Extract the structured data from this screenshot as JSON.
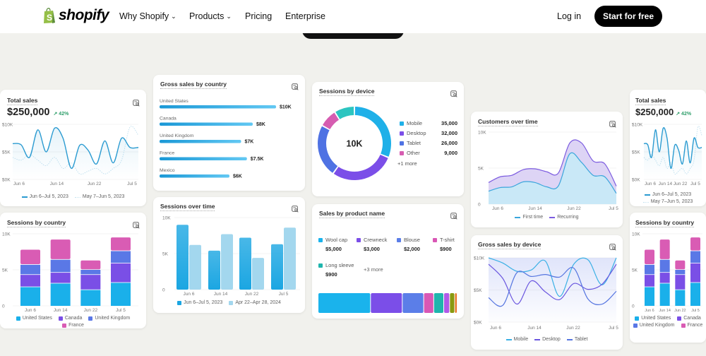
{
  "nav": {
    "logo_text": "shopify",
    "brand_color": "#95bf47",
    "items": [
      {
        "label": "Why Shopify",
        "dropdown": true
      },
      {
        "label": "Products",
        "dropdown": true
      },
      {
        "label": "Pricing",
        "dropdown": false
      },
      {
        "label": "Enterprise",
        "dropdown": false
      }
    ],
    "login": "Log in",
    "cta": "Start for free"
  },
  "card_icon": "chart-magnifier-icon",
  "chart_data": [
    {
      "type": "line",
      "title": "Total sales",
      "value": "$250,000",
      "change": "42%",
      "change_icon": "arrow-up-right-icon",
      "x_ticks": [
        "Jun 6",
        "Jun 14",
        "Jun 22",
        "Jul 5"
      ],
      "yticks": [
        0,
        5,
        10
      ],
      "ytick_labels": [
        "$0K",
        "$5K",
        "$10K"
      ],
      "ylim": [
        0,
        10
      ],
      "series": [
        {
          "name": "Jun 6–Jul 5, 2023",
          "color": "#2b9bd1",
          "values": [
            6.5,
            6.3,
            4.0,
            9.0,
            5.0,
            9.3,
            7.5,
            2.0,
            6.2,
            5.3,
            2.8,
            7.0,
            3.0,
            7.5,
            5.8,
            5.8
          ]
        },
        {
          "name": "May 7–Jun 5, 2023",
          "color": "#c4e2f0",
          "dashed": true,
          "values": [
            4.0,
            3.5,
            4.5,
            3.5,
            2.5,
            4.0,
            2.0,
            3.0,
            1.0,
            1.5,
            2.0,
            1.0,
            2.0,
            3.5,
            9.5,
            8.0
          ]
        }
      ]
    },
    {
      "type": "bar",
      "stacked": true,
      "title": "Sessions by country",
      "categories": [
        "Jun 6",
        "Jun 14",
        "Jun 22",
        "Jul 5"
      ],
      "yticks": [
        0,
        5,
        10
      ],
      "ytick_labels": [
        "0",
        "5K",
        "10K"
      ],
      "ylim": [
        0,
        10
      ],
      "series": [
        {
          "name": "United States",
          "color": "#1ab0ea",
          "values": [
            2.6,
            3.1,
            2.2,
            3.2
          ]
        },
        {
          "name": "Canada",
          "color": "#7a4fe6",
          "values": [
            1.7,
            1.5,
            2.1,
            2.7
          ]
        },
        {
          "name": "United Kingdom",
          "color": "#5a78e6",
          "values": [
            1.4,
            1.8,
            0.7,
            1.7
          ]
        },
        {
          "name": "France",
          "color": "#d95cb4",
          "values": [
            2.1,
            2.8,
            1.3,
            1.9
          ]
        }
      ]
    },
    {
      "type": "bar",
      "orientation": "horizontal",
      "title": "Gross sales by country",
      "xlim": [
        0,
        10
      ],
      "categories": [
        "United States",
        "Canada",
        "United Kingdom",
        "France",
        "Mexico"
      ],
      "values": [
        10,
        8,
        7,
        7.5,
        6
      ],
      "value_labels": [
        "$10K",
        "$8K",
        "$7K",
        "$7.5K",
        "$6K"
      ],
      "colors": [
        "#1a98d6",
        "#62c8f3"
      ]
    },
    {
      "type": "bar",
      "title": "Sessions over time",
      "categories": [
        "Jun 6",
        "Jun 14",
        "Jun 22",
        "Jul 5"
      ],
      "yticks": [
        0,
        5,
        10
      ],
      "ytick_labels": [
        "0",
        "5K",
        "10K"
      ],
      "ylim": [
        0,
        10
      ],
      "series": [
        {
          "name": "Jun 6–Jul 5, 2023",
          "color": "#1ba6e2",
          "values": [
            9.0,
            5.4,
            7.2,
            6.3
          ]
        },
        {
          "name": "Apr 22–Apr 28, 2024",
          "color": "#a3d7ee",
          "values": [
            6.2,
            7.7,
            4.4,
            8.6
          ]
        }
      ]
    },
    {
      "type": "pie",
      "donut": true,
      "title": "Sessions by device",
      "center_label": "10K",
      "slices": [
        {
          "name": "Mobile",
          "value": 35000,
          "value_label": "35,000",
          "color": "#1fb0e8"
        },
        {
          "name": "Desktop",
          "value": 32000,
          "value_label": "32,000",
          "color": "#7b4ee8"
        },
        {
          "name": "Tablet",
          "value": 26000,
          "value_label": "26,000",
          "color": "#4f72e3"
        },
        {
          "name": "Other",
          "value": 9000,
          "value_label": "9,000",
          "color": "#d65db1"
        },
        {
          "name": "",
          "value": 10000,
          "color": "#2cc5c0"
        }
      ],
      "more_label": "+1 more"
    },
    {
      "type": "bar",
      "stacked": true,
      "orientation": "horizontal",
      "title": "Sales by product name",
      "items": [
        {
          "name": "Wool cap",
          "value_label": "$5,000",
          "value": 5000,
          "color": "#1ab3ec"
        },
        {
          "name": "Crewneck",
          "value_label": "$3,000",
          "value": 3000,
          "color": "#7b4ee8"
        },
        {
          "name": "Blouse",
          "value_label": "$2,000",
          "value": 2000,
          "color": "#5b7ee8"
        },
        {
          "name": "T-shirt",
          "value_label": "$900",
          "value": 900,
          "color": "#d957b5"
        },
        {
          "name": "Long sleeve",
          "value_label": "$900",
          "value": 900,
          "color": "#1fb5ad"
        }
      ],
      "more_label": "+3 more",
      "bar_segments": [
        {
          "value": 5000,
          "color": "#1ab3ec"
        },
        {
          "value": 3000,
          "color": "#7b4ee8"
        },
        {
          "value": 2000,
          "color": "#5b7ee8"
        },
        {
          "value": 900,
          "color": "#d957b5"
        },
        {
          "value": 900,
          "color": "#1fb5ad"
        },
        {
          "value": 500,
          "color": "#b05ae8"
        },
        {
          "value": 420,
          "color": "#8a9a10"
        },
        {
          "value": 170,
          "color": "#e8782a"
        }
      ]
    },
    {
      "type": "area",
      "stacked": true,
      "title": "Customers over time",
      "x_ticks": [
        "Jun 6",
        "Jun 14",
        "Jun 22",
        "Jul 5"
      ],
      "yticks": [
        0,
        5,
        10
      ],
      "ytick_labels": [
        "0",
        "5K",
        "10K"
      ],
      "ylim": [
        0,
        10
      ],
      "series": [
        {
          "name": "First time",
          "color": "#3aa6dc",
          "fill": "#c9e8f7",
          "values": [
            1.8,
            2.3,
            2.4,
            3.1,
            3.0,
            2.4,
            2.5,
            7.0,
            5.8,
            4.0,
            3.8,
            1.5
          ]
        },
        {
          "name": "Recurring",
          "color": "#7c5ce0",
          "fill": "#ddd4f5",
          "values": [
            1.2,
            1.5,
            1.6,
            1.7,
            1.9,
            2.1,
            1.8,
            1.5,
            2.7,
            2.0,
            1.8,
            1.0
          ]
        }
      ]
    },
    {
      "type": "line",
      "title": "Gross sales by device",
      "x_ticks": [
        "Jun 6",
        "Jun 14",
        "Jun 22",
        "Jul 5"
      ],
      "yticks": [
        0,
        5,
        10
      ],
      "ytick_labels": [
        "$0K",
        "$5K",
        "$10K"
      ],
      "ylim": [
        0,
        10
      ],
      "series": [
        {
          "name": "Mobile",
          "color": "#3ab0e5",
          "values": [
            10,
            9.2,
            7.9,
            8.1,
            9.5,
            4.0,
            9.0,
            9.7,
            5.8,
            10
          ]
        },
        {
          "name": "Desktop",
          "color": "#6a56df",
          "values": [
            9.0,
            6.8,
            2.8,
            6.4,
            4.7,
            3.5,
            6.0,
            5.1,
            5.9,
            9.0
          ]
        },
        {
          "name": "Tablet",
          "color": "#5575e0",
          "values": [
            3.8,
            2.6,
            7.7,
            7.1,
            7.4,
            7.0,
            8.4,
            3.6,
            2.8,
            4.8
          ]
        }
      ]
    }
  ]
}
